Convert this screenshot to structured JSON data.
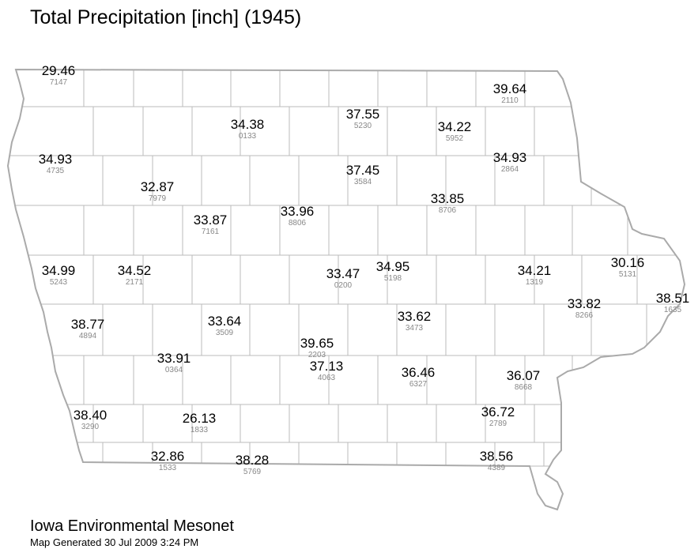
{
  "title": "Total Precipitation [inch] (1945)",
  "stations": [
    {
      "value": "29.46",
      "id": "7147"
    },
    {
      "value": "39.64",
      "id": "2110"
    },
    {
      "value": "34.38",
      "id": "0133"
    },
    {
      "value": "37.55",
      "id": "5230"
    },
    {
      "value": "34.22",
      "id": "5952"
    },
    {
      "value": "34.93",
      "id": "4735"
    },
    {
      "value": "34.93",
      "id": "2864"
    },
    {
      "value": "37.45",
      "id": "3584"
    },
    {
      "value": "32.87",
      "id": "7979"
    },
    {
      "value": "33.85",
      "id": "8706"
    },
    {
      "value": "33.87",
      "id": "7161"
    },
    {
      "value": "33.96",
      "id": "8806"
    },
    {
      "value": "34.99",
      "id": "5243"
    },
    {
      "value": "34.52",
      "id": "2171"
    },
    {
      "value": "33.47",
      "id": "0200"
    },
    {
      "value": "34.95",
      "id": "5198"
    },
    {
      "value": "34.21",
      "id": "1319"
    },
    {
      "value": "30.16",
      "id": "5131"
    },
    {
      "value": "38.51",
      "id": "1635"
    },
    {
      "value": "33.82",
      "id": "8266"
    },
    {
      "value": "38.77",
      "id": "4894"
    },
    {
      "value": "33.64",
      "id": "3509"
    },
    {
      "value": "33.62",
      "id": "3473"
    },
    {
      "value": "39.65",
      "id": "2203"
    },
    {
      "value": "33.91",
      "id": "0364"
    },
    {
      "value": "37.13",
      "id": "4063"
    },
    {
      "value": "36.46",
      "id": "6327"
    },
    {
      "value": "36.07",
      "id": "8668"
    },
    {
      "value": "38.40",
      "id": "3290"
    },
    {
      "value": "26.13",
      "id": "1833"
    },
    {
      "value": "36.72",
      "id": "2789"
    },
    {
      "value": "32.86",
      "id": "1533"
    },
    {
      "value": "38.28",
      "id": "5769"
    },
    {
      "value": "38.56",
      "id": "4389"
    }
  ],
  "footer": {
    "organization": "Iowa Environmental Mesonet",
    "generated": "Map Generated 30 Jul 2009 3:24 PM"
  }
}
